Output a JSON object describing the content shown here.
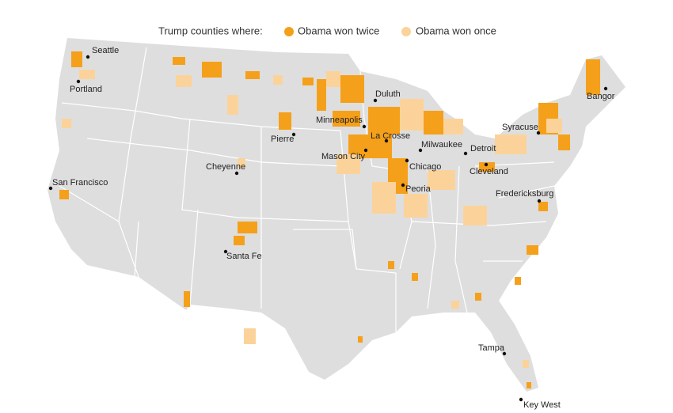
{
  "legend": {
    "title": "Trump counties where:",
    "items": [
      {
        "label": "Obama won twice",
        "color": "#f5a01a"
      },
      {
        "label": "Obama won once",
        "color": "#fbd39a"
      }
    ]
  },
  "land_color": "#dedede",
  "cities": [
    {
      "name": "Seattle"
    },
    {
      "name": "Portland"
    },
    {
      "name": "San Francisco"
    },
    {
      "name": "Cheyenne"
    },
    {
      "name": "Santa Fe"
    },
    {
      "name": "Pierre"
    },
    {
      "name": "Minneapolis"
    },
    {
      "name": "Duluth"
    },
    {
      "name": "La Crosse"
    },
    {
      "name": "Mason City"
    },
    {
      "name": "Milwaukee"
    },
    {
      "name": "Chicago"
    },
    {
      "name": "Peoria"
    },
    {
      "name": "Detroit"
    },
    {
      "name": "Cleveland"
    },
    {
      "name": "Syracuse"
    },
    {
      "name": "Bangor"
    },
    {
      "name": "Fredericksburg"
    },
    {
      "name": "Tampa"
    },
    {
      "name": "Key West"
    }
  ]
}
